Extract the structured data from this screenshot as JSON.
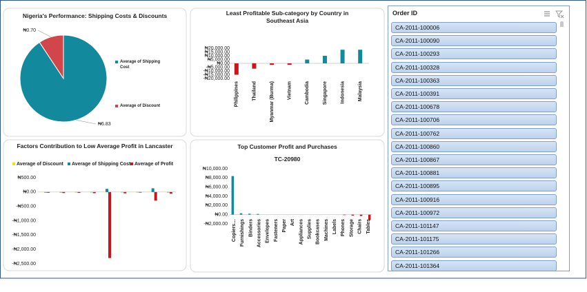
{
  "chart_data": [
    {
      "type": "pie",
      "title": "Nigeria's Performance: Shipping Costs & Discounts",
      "categories": [
        "Average of Shipping Cost",
        "Average of Discount"
      ],
      "values": [
        6.83,
        0.7
      ],
      "value_labels": [
        "₦6.83",
        "₦0.70"
      ],
      "colors": [
        "#13899d",
        "#d0464a"
      ]
    },
    {
      "type": "bar",
      "title": "Least Profitable Sub-category by Country in Southeast Asia",
      "categories": [
        "Philippines",
        "Thailand",
        "Myanmar (Burma)",
        "Vietnam",
        "Cambodia",
        "Singapore",
        "Indonesia",
        "Malaysia"
      ],
      "values": [
        -15000,
        -7000,
        -2000,
        -2000,
        5000,
        10000,
        18000,
        18000
      ],
      "color": "#13899d",
      "negative_color": "#c8161d",
      "ylim": [
        -20000,
        20000
      ],
      "yticks": [
        {
          "value": 20000,
          "label": "₦20,000.00"
        },
        {
          "value": 15000,
          "label": "₦15,000.00"
        },
        {
          "value": 10000,
          "label": "₦10,000.00"
        },
        {
          "value": 5000,
          "label": "₦5,000.00"
        },
        {
          "value": 0,
          "label": "₦0.00"
        },
        {
          "value": -5000,
          "label": "-₦5,000.00"
        },
        {
          "value": -10000,
          "label": "-₦10,000.00"
        },
        {
          "value": -15000,
          "label": "-₦15,000.00"
        },
        {
          "value": -20000,
          "label": "-₦20,000.00"
        }
      ]
    },
    {
      "type": "bar",
      "title": "Factors Contribution to Low Average Profit in Lancaster",
      "categories": [
        null,
        null,
        null,
        null,
        null,
        null,
        null,
        null,
        null
      ],
      "series": [
        {
          "name": "Average of Discount",
          "color": "#f2e600",
          "values": [
            5,
            5,
            5,
            5,
            5,
            5,
            5,
            5,
            5
          ]
        },
        {
          "name": "Average of Shipping Cost",
          "color": "#13899d",
          "values": [
            -20,
            -15,
            -10,
            -10,
            110,
            -10,
            -10,
            130,
            -15
          ]
        },
        {
          "name": "Average of Profit",
          "color": "#c8161d",
          "values": [
            -25,
            -35,
            -30,
            -40,
            -2300,
            -45,
            -20,
            -300,
            -55
          ]
        }
      ],
      "ylim": [
        -2500,
        500
      ],
      "yticks": [
        {
          "value": 500,
          "label": "₦500.00"
        },
        {
          "value": 0,
          "label": "₦0.00"
        },
        {
          "value": -500,
          "label": "-₦500.00"
        },
        {
          "value": -1000,
          "label": "-₦1,000.00"
        },
        {
          "value": -1500,
          "label": "-₦1,500.00"
        },
        {
          "value": -2000,
          "label": "-₦2,000.00"
        },
        {
          "value": -2500,
          "label": "-₦2,500.00"
        }
      ],
      "legend": "top"
    },
    {
      "type": "bar",
      "title": "Top Customer Profit and Purchases",
      "subtitle": "TC-20980",
      "categories": [
        "Copiers…",
        "Furnishings",
        "Binders",
        "Accessories",
        "Envelopes",
        "Fasteners",
        "Paper",
        "Art",
        "Appliances",
        "Supplies",
        "Bookcases",
        "Machines",
        "Labels",
        "Phones",
        "Storage",
        "Chairs",
        "Tables"
      ],
      "series": [
        {
          "color": "#13899d",
          "values": [
            8400,
            300,
            200,
            150,
            0,
            0,
            0,
            0,
            0,
            0,
            0,
            0,
            0,
            0,
            0,
            0,
            0
          ]
        },
        {
          "color": "#c8161d",
          "values": [
            0,
            0,
            0,
            0,
            0,
            0,
            0,
            0,
            0,
            0,
            0,
            0,
            0,
            -100,
            -200,
            -300,
            -1200
          ]
        }
      ],
      "ylim": [
        -2000,
        10000
      ],
      "yticks": [
        {
          "value": 10000,
          "label": "₦10,000.00"
        },
        {
          "value": 8000,
          "label": "₦8,000.00"
        },
        {
          "value": 6000,
          "label": "₦6,000.00"
        },
        {
          "value": 4000,
          "label": "₦4,000.00"
        },
        {
          "value": 2000,
          "label": "₦2,000.00"
        },
        {
          "value": 0,
          "label": "₦0.00"
        },
        {
          "value": -2000,
          "label": "-₦2,000.00"
        }
      ]
    }
  ],
  "slicer": {
    "title": "Order ID",
    "items": [
      "CA-2011-100006",
      "CA-2011-100090",
      "CA-2011-100293",
      "CA-2011-100328",
      "CA-2011-100363",
      "CA-2011-100391",
      "CA-2011-100678",
      "CA-2011-100706",
      "CA-2011-100762",
      "CA-2011-100860",
      "CA-2011-100867",
      "CA-2011-100881",
      "CA-2011-100895",
      "CA-2011-100916",
      "CA-2011-100972",
      "CA-2011-101147",
      "CA-2011-101175",
      "CA-2011-101266",
      "CA-2011-101364"
    ]
  }
}
